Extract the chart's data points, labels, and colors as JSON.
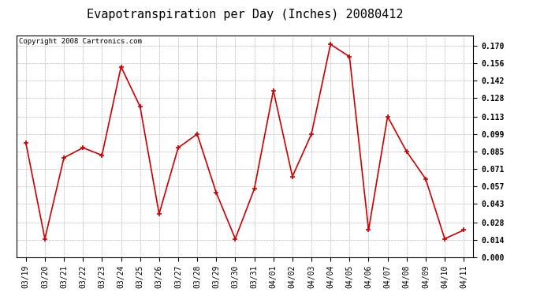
{
  "title": "Evapotranspiration per Day (Inches) 20080412",
  "copyright_text": "Copyright 2008 Cartronics.com",
  "dates": [
    "03/19",
    "03/20",
    "03/21",
    "03/22",
    "03/23",
    "03/24",
    "03/25",
    "03/26",
    "03/27",
    "03/28",
    "03/29",
    "03/30",
    "03/31",
    "04/01",
    "04/02",
    "04/03",
    "04/04",
    "04/05",
    "04/06",
    "04/07",
    "04/08",
    "04/09",
    "04/10",
    "04/11"
  ],
  "values": [
    0.092,
    0.015,
    0.08,
    0.088,
    0.082,
    0.153,
    0.121,
    0.035,
    0.088,
    0.099,
    0.052,
    0.015,
    0.055,
    0.134,
    0.065,
    0.099,
    0.171,
    0.161,
    0.022,
    0.113,
    0.085,
    0.063,
    0.015,
    0.022
  ],
  "line_color": "#cc0000",
  "marker_color": "#cc0000",
  "background_color": "#ffffff",
  "grid_color": "#bbbbbb",
  "yticks": [
    0.0,
    0.014,
    0.028,
    0.043,
    0.057,
    0.071,
    0.085,
    0.099,
    0.113,
    0.128,
    0.142,
    0.156,
    0.17
  ],
  "ylim": [
    0.0,
    0.178
  ],
  "title_fontsize": 11,
  "tick_fontsize": 7,
  "copyright_fontsize": 6.5
}
